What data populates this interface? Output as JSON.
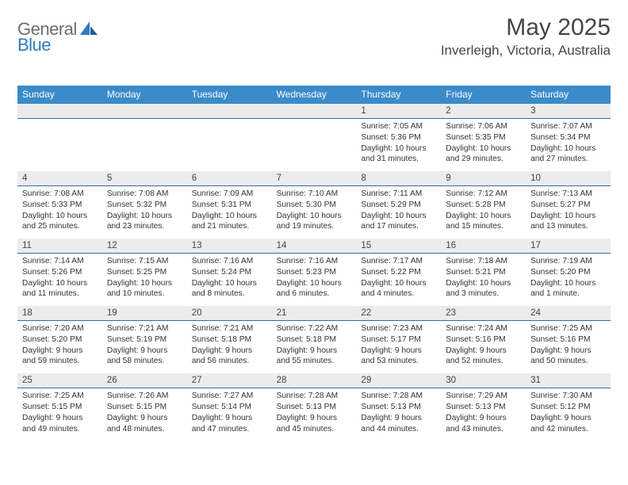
{
  "logo": {
    "text1": "General",
    "text2": "Blue"
  },
  "title": "May 2025",
  "location": "Inverleigh, Victoria, Australia",
  "colors": {
    "header_bg": "#3b8bc9",
    "divider": "#2e6fa6",
    "daynum_bg": "#ececec",
    "text": "#333333"
  },
  "weekdays": [
    "Sunday",
    "Monday",
    "Tuesday",
    "Wednesday",
    "Thursday",
    "Friday",
    "Saturday"
  ],
  "weeks": [
    [
      null,
      null,
      null,
      null,
      {
        "n": "1",
        "sunrise": "7:05 AM",
        "sunset": "5:36 PM",
        "dl1": "Daylight: 10 hours",
        "dl2": "and 31 minutes."
      },
      {
        "n": "2",
        "sunrise": "7:06 AM",
        "sunset": "5:35 PM",
        "dl1": "Daylight: 10 hours",
        "dl2": "and 29 minutes."
      },
      {
        "n": "3",
        "sunrise": "7:07 AM",
        "sunset": "5:34 PM",
        "dl1": "Daylight: 10 hours",
        "dl2": "and 27 minutes."
      }
    ],
    [
      {
        "n": "4",
        "sunrise": "7:08 AM",
        "sunset": "5:33 PM",
        "dl1": "Daylight: 10 hours",
        "dl2": "and 25 minutes."
      },
      {
        "n": "5",
        "sunrise": "7:08 AM",
        "sunset": "5:32 PM",
        "dl1": "Daylight: 10 hours",
        "dl2": "and 23 minutes."
      },
      {
        "n": "6",
        "sunrise": "7:09 AM",
        "sunset": "5:31 PM",
        "dl1": "Daylight: 10 hours",
        "dl2": "and 21 minutes."
      },
      {
        "n": "7",
        "sunrise": "7:10 AM",
        "sunset": "5:30 PM",
        "dl1": "Daylight: 10 hours",
        "dl2": "and 19 minutes."
      },
      {
        "n": "8",
        "sunrise": "7:11 AM",
        "sunset": "5:29 PM",
        "dl1": "Daylight: 10 hours",
        "dl2": "and 17 minutes."
      },
      {
        "n": "9",
        "sunrise": "7:12 AM",
        "sunset": "5:28 PM",
        "dl1": "Daylight: 10 hours",
        "dl2": "and 15 minutes."
      },
      {
        "n": "10",
        "sunrise": "7:13 AM",
        "sunset": "5:27 PM",
        "dl1": "Daylight: 10 hours",
        "dl2": "and 13 minutes."
      }
    ],
    [
      {
        "n": "11",
        "sunrise": "7:14 AM",
        "sunset": "5:26 PM",
        "dl1": "Daylight: 10 hours",
        "dl2": "and 11 minutes."
      },
      {
        "n": "12",
        "sunrise": "7:15 AM",
        "sunset": "5:25 PM",
        "dl1": "Daylight: 10 hours",
        "dl2": "and 10 minutes."
      },
      {
        "n": "13",
        "sunrise": "7:16 AM",
        "sunset": "5:24 PM",
        "dl1": "Daylight: 10 hours",
        "dl2": "and 8 minutes."
      },
      {
        "n": "14",
        "sunrise": "7:16 AM",
        "sunset": "5:23 PM",
        "dl1": "Daylight: 10 hours",
        "dl2": "and 6 minutes."
      },
      {
        "n": "15",
        "sunrise": "7:17 AM",
        "sunset": "5:22 PM",
        "dl1": "Daylight: 10 hours",
        "dl2": "and 4 minutes."
      },
      {
        "n": "16",
        "sunrise": "7:18 AM",
        "sunset": "5:21 PM",
        "dl1": "Daylight: 10 hours",
        "dl2": "and 3 minutes."
      },
      {
        "n": "17",
        "sunrise": "7:19 AM",
        "sunset": "5:20 PM",
        "dl1": "Daylight: 10 hours",
        "dl2": "and 1 minute."
      }
    ],
    [
      {
        "n": "18",
        "sunrise": "7:20 AM",
        "sunset": "5:20 PM",
        "dl1": "Daylight: 9 hours",
        "dl2": "and 59 minutes."
      },
      {
        "n": "19",
        "sunrise": "7:21 AM",
        "sunset": "5:19 PM",
        "dl1": "Daylight: 9 hours",
        "dl2": "and 58 minutes."
      },
      {
        "n": "20",
        "sunrise": "7:21 AM",
        "sunset": "5:18 PM",
        "dl1": "Daylight: 9 hours",
        "dl2": "and 56 minutes."
      },
      {
        "n": "21",
        "sunrise": "7:22 AM",
        "sunset": "5:18 PM",
        "dl1": "Daylight: 9 hours",
        "dl2": "and 55 minutes."
      },
      {
        "n": "22",
        "sunrise": "7:23 AM",
        "sunset": "5:17 PM",
        "dl1": "Daylight: 9 hours",
        "dl2": "and 53 minutes."
      },
      {
        "n": "23",
        "sunrise": "7:24 AM",
        "sunset": "5:16 PM",
        "dl1": "Daylight: 9 hours",
        "dl2": "and 52 minutes."
      },
      {
        "n": "24",
        "sunrise": "7:25 AM",
        "sunset": "5:16 PM",
        "dl1": "Daylight: 9 hours",
        "dl2": "and 50 minutes."
      }
    ],
    [
      {
        "n": "25",
        "sunrise": "7:25 AM",
        "sunset": "5:15 PM",
        "dl1": "Daylight: 9 hours",
        "dl2": "and 49 minutes."
      },
      {
        "n": "26",
        "sunrise": "7:26 AM",
        "sunset": "5:15 PM",
        "dl1": "Daylight: 9 hours",
        "dl2": "and 48 minutes."
      },
      {
        "n": "27",
        "sunrise": "7:27 AM",
        "sunset": "5:14 PM",
        "dl1": "Daylight: 9 hours",
        "dl2": "and 47 minutes."
      },
      {
        "n": "28",
        "sunrise": "7:28 AM",
        "sunset": "5:13 PM",
        "dl1": "Daylight: 9 hours",
        "dl2": "and 45 minutes."
      },
      {
        "n": "29",
        "sunrise": "7:28 AM",
        "sunset": "5:13 PM",
        "dl1": "Daylight: 9 hours",
        "dl2": "and 44 minutes."
      },
      {
        "n": "30",
        "sunrise": "7:29 AM",
        "sunset": "5:13 PM",
        "dl1": "Daylight: 9 hours",
        "dl2": "and 43 minutes."
      },
      {
        "n": "31",
        "sunrise": "7:30 AM",
        "sunset": "5:12 PM",
        "dl1": "Daylight: 9 hours",
        "dl2": "and 42 minutes."
      }
    ]
  ],
  "labels": {
    "sunrise": "Sunrise: ",
    "sunset": "Sunset: "
  }
}
